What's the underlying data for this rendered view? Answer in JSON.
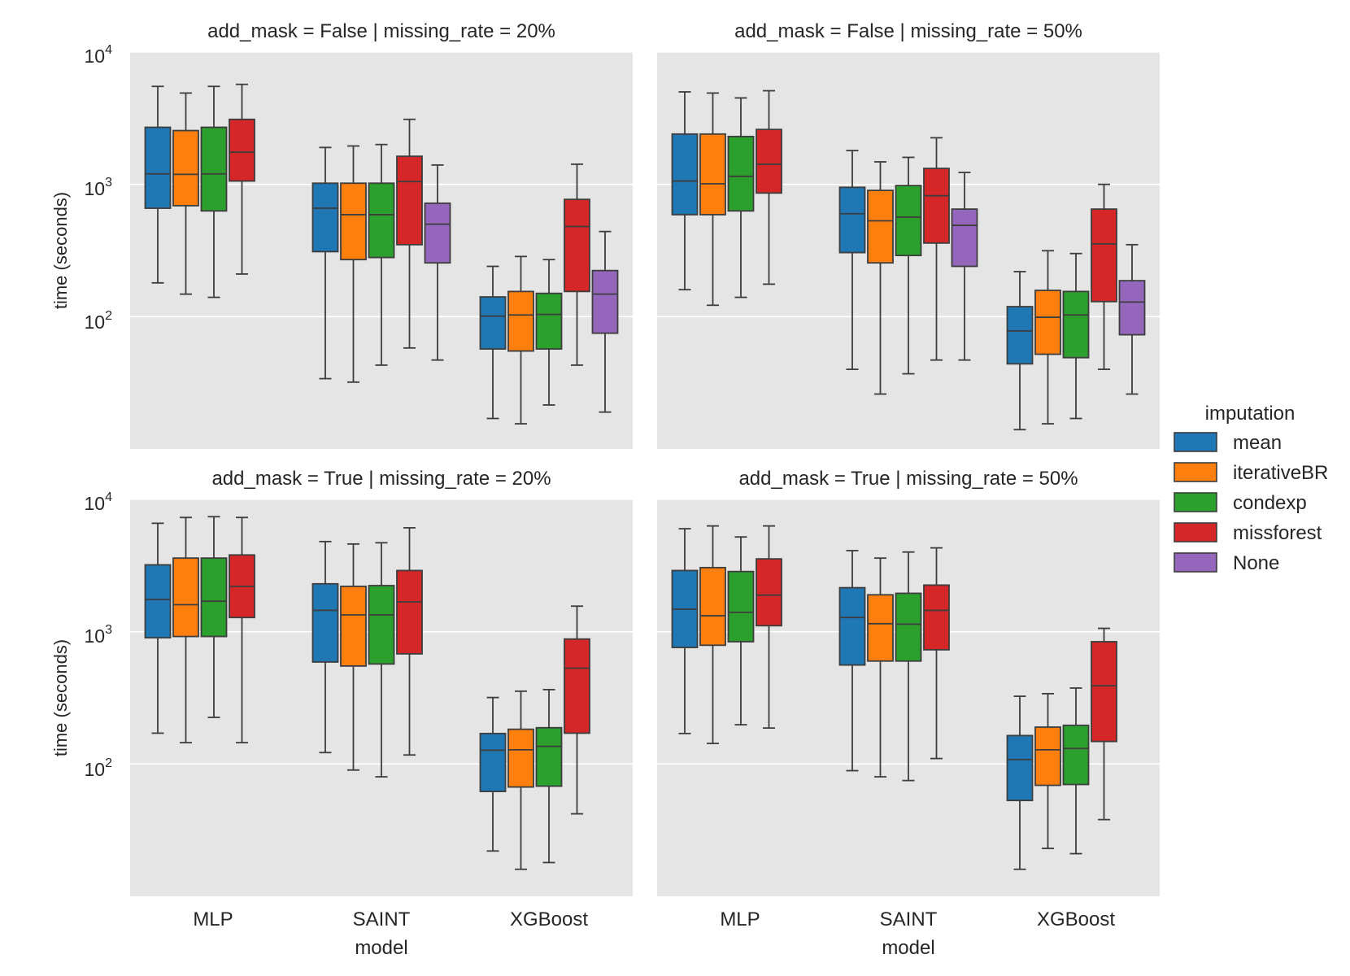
{
  "chart_data": {
    "type": "box",
    "yscale": "log",
    "ylim": [
      10,
      10000
    ],
    "ylabel": "time (seconds)",
    "xlabel": "model",
    "categories": [
      "MLP",
      "SAINT",
      "XGBoost"
    ],
    "y_ticks": [
      {
        "base": "10",
        "exp": "2",
        "value": 100
      },
      {
        "base": "10",
        "exp": "3",
        "value": 1000
      },
      {
        "base": "10",
        "exp": "4",
        "value": 10000
      }
    ],
    "legend": {
      "title": "imputation",
      "entries": [
        {
          "name": "mean",
          "color": "#1f77b4"
        },
        {
          "name": "iterativeBR",
          "color": "#ff7f0e"
        },
        {
          "name": "condexp",
          "color": "#2ca02c"
        },
        {
          "name": "missforest",
          "color": "#d62728"
        },
        {
          "name": "None",
          "color": "#9467bd"
        }
      ]
    },
    "panels": [
      {
        "title": "add_mask = False | missing_rate = 20%",
        "groups": [
          {
            "category": "MLP",
            "boxes": [
              {
                "series": "mean",
                "min": 180,
                "q1": 660,
                "median": 1200,
                "q3": 2700,
                "max": 5500
              },
              {
                "series": "iterativeBR",
                "min": 148,
                "q1": 690,
                "median": 1190,
                "q3": 2550,
                "max": 4900
              },
              {
                "series": "condexp",
                "min": 140,
                "q1": 630,
                "median": 1200,
                "q3": 2700,
                "max": 5500
              },
              {
                "series": "missforest",
                "min": 210,
                "q1": 1060,
                "median": 1750,
                "q3": 3100,
                "max": 5700
              }
            ]
          },
          {
            "category": "SAINT",
            "boxes": [
              {
                "series": "mean",
                "min": 34,
                "q1": 310,
                "median": 660,
                "q3": 1020,
                "max": 1900
              },
              {
                "series": "iterativeBR",
                "min": 32,
                "q1": 270,
                "median": 590,
                "q3": 1020,
                "max": 1950
              },
              {
                "series": "condexp",
                "min": 43,
                "q1": 280,
                "median": 590,
                "q3": 1020,
                "max": 2000
              },
              {
                "series": "missforest",
                "min": 58,
                "q1": 350,
                "median": 1050,
                "q3": 1630,
                "max": 3100
              },
              {
                "series": "None",
                "min": 47,
                "q1": 255,
                "median": 500,
                "q3": 720,
                "max": 1400
              }
            ]
          },
          {
            "category": "XGBoost",
            "boxes": [
              {
                "series": "mean",
                "min": 17,
                "q1": 57,
                "median": 101,
                "q3": 141,
                "max": 240
              },
              {
                "series": "iterativeBR",
                "min": 15.5,
                "q1": 55,
                "median": 103,
                "q3": 155,
                "max": 285
              },
              {
                "series": "condexp",
                "min": 21.5,
                "q1": 57,
                "median": 104,
                "q3": 150,
                "max": 270
              },
              {
                "series": "missforest",
                "min": 43,
                "q1": 155,
                "median": 480,
                "q3": 770,
                "max": 1420
              },
              {
                "series": "None",
                "min": 19,
                "q1": 75,
                "median": 148,
                "q3": 223,
                "max": 440
              }
            ]
          }
        ]
      },
      {
        "title": "add_mask = False | missing_rate = 50%",
        "groups": [
          {
            "category": "MLP",
            "boxes": [
              {
                "series": "mean",
                "min": 160,
                "q1": 590,
                "median": 1060,
                "q3": 2400,
                "max": 5000
              },
              {
                "series": "iterativeBR",
                "min": 122,
                "q1": 590,
                "median": 1010,
                "q3": 2400,
                "max": 4900
              },
              {
                "series": "condexp",
                "min": 140,
                "q1": 630,
                "median": 1150,
                "q3": 2300,
                "max": 4500
              },
              {
                "series": "missforest",
                "min": 176,
                "q1": 860,
                "median": 1420,
                "q3": 2600,
                "max": 5100
              }
            ]
          },
          {
            "category": "SAINT",
            "boxes": [
              {
                "series": "mean",
                "min": 40,
                "q1": 305,
                "median": 600,
                "q3": 950,
                "max": 1800
              },
              {
                "series": "iterativeBR",
                "min": 26,
                "q1": 255,
                "median": 530,
                "q3": 900,
                "max": 1480
              },
              {
                "series": "condexp",
                "min": 37,
                "q1": 290,
                "median": 565,
                "q3": 980,
                "max": 1600
              },
              {
                "series": "missforest",
                "min": 47,
                "q1": 360,
                "median": 820,
                "q3": 1320,
                "max": 2250
              },
              {
                "series": "None",
                "min": 47,
                "q1": 240,
                "median": 490,
                "q3": 650,
                "max": 1230
              }
            ]
          },
          {
            "category": "XGBoost",
            "boxes": [
              {
                "series": "mean",
                "min": 14,
                "q1": 44,
                "median": 78,
                "q3": 119,
                "max": 219
              },
              {
                "series": "iterativeBR",
                "min": 15.5,
                "q1": 52,
                "median": 99,
                "q3": 158,
                "max": 315
              },
              {
                "series": "condexp",
                "min": 17,
                "q1": 49,
                "median": 103,
                "q3": 155,
                "max": 300
              },
              {
                "series": "missforest",
                "min": 40,
                "q1": 130,
                "median": 355,
                "q3": 650,
                "max": 1000
              },
              {
                "series": "None",
                "min": 26,
                "q1": 73,
                "median": 129,
                "q3": 187,
                "max": 350
              }
            ]
          }
        ]
      },
      {
        "title": "add_mask = True | missing_rate = 20%",
        "groups": [
          {
            "category": "MLP",
            "boxes": [
              {
                "series": "mean",
                "min": 171,
                "q1": 900,
                "median": 1750,
                "q3": 3200,
                "max": 6600
              },
              {
                "series": "iterativeBR",
                "min": 145,
                "q1": 920,
                "median": 1600,
                "q3": 3600,
                "max": 7300
              },
              {
                "series": "condexp",
                "min": 225,
                "q1": 920,
                "median": 1700,
                "q3": 3600,
                "max": 7400
              },
              {
                "series": "missforest",
                "min": 145,
                "q1": 1280,
                "median": 2200,
                "q3": 3800,
                "max": 7300
              }
            ]
          },
          {
            "category": "SAINT",
            "boxes": [
              {
                "series": "mean",
                "min": 122,
                "q1": 590,
                "median": 1450,
                "q3": 2300,
                "max": 4800
              },
              {
                "series": "iterativeBR",
                "min": 90,
                "q1": 550,
                "median": 1340,
                "q3": 2200,
                "max": 4600
              },
              {
                "series": "condexp",
                "min": 80,
                "q1": 570,
                "median": 1340,
                "q3": 2230,
                "max": 4700
              },
              {
                "series": "missforest",
                "min": 117,
                "q1": 680,
                "median": 1680,
                "q3": 2900,
                "max": 6100
              }
            ]
          },
          {
            "category": "XGBoost",
            "boxes": [
              {
                "series": "mean",
                "min": 22,
                "q1": 62,
                "median": 127,
                "q3": 170,
                "max": 318
              },
              {
                "series": "iterativeBR",
                "min": 16,
                "q1": 67,
                "median": 128,
                "q3": 183,
                "max": 355
              },
              {
                "series": "condexp",
                "min": 18,
                "q1": 68,
                "median": 136,
                "q3": 188,
                "max": 365
              },
              {
                "series": "missforest",
                "min": 42,
                "q1": 171,
                "median": 530,
                "q3": 880,
                "max": 1560
              }
            ]
          }
        ]
      },
      {
        "title": "add_mask = True | missing_rate = 50%",
        "groups": [
          {
            "category": "MLP",
            "boxes": [
              {
                "series": "mean",
                "min": 170,
                "q1": 760,
                "median": 1480,
                "q3": 2900,
                "max": 6000
              },
              {
                "series": "iterativeBR",
                "min": 143,
                "q1": 790,
                "median": 1320,
                "q3": 3050,
                "max": 6300
              },
              {
                "series": "condexp",
                "min": 198,
                "q1": 840,
                "median": 1400,
                "q3": 2850,
                "max": 5200
              },
              {
                "series": "missforest",
                "min": 187,
                "q1": 1110,
                "median": 1890,
                "q3": 3550,
                "max": 6300
              }
            ]
          },
          {
            "category": "SAINT",
            "boxes": [
              {
                "series": "mean",
                "min": 89,
                "q1": 560,
                "median": 1280,
                "q3": 2150,
                "max": 4100
              },
              {
                "series": "iterativeBR",
                "min": 80,
                "q1": 600,
                "median": 1150,
                "q3": 1900,
                "max": 3600
              },
              {
                "series": "condexp",
                "min": 75,
                "q1": 600,
                "median": 1140,
                "q3": 1950,
                "max": 4000
              },
              {
                "series": "missforest",
                "min": 110,
                "q1": 730,
                "median": 1450,
                "q3": 2250,
                "max": 4300
              }
            ]
          },
          {
            "category": "XGBoost",
            "boxes": [
              {
                "series": "mean",
                "min": 16,
                "q1": 53,
                "median": 108,
                "q3": 164,
                "max": 325
              },
              {
                "series": "iterativeBR",
                "min": 23,
                "q1": 69,
                "median": 128,
                "q3": 190,
                "max": 340
              },
              {
                "series": "condexp",
                "min": 21,
                "q1": 70,
                "median": 131,
                "q3": 196,
                "max": 375
              },
              {
                "series": "missforest",
                "min": 38,
                "q1": 148,
                "median": 390,
                "q3": 840,
                "max": 1060
              }
            ]
          }
        ]
      }
    ]
  }
}
